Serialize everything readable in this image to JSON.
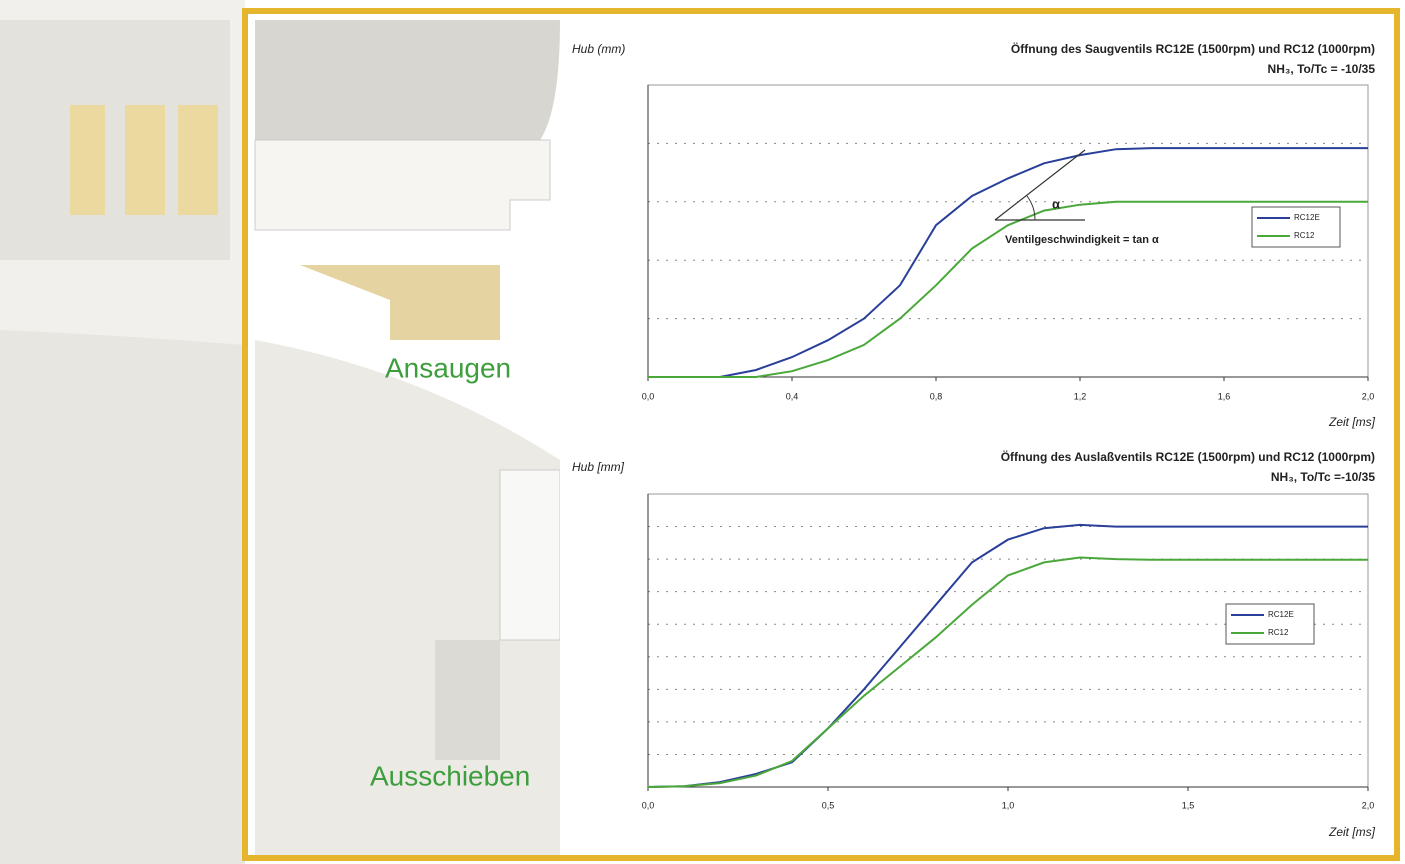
{
  "illustration": {
    "labels": [
      "Ansaugen",
      "Ausschieben"
    ]
  },
  "chart_data": [
    {
      "type": "line",
      "title": "Öffnung des Saugventils RC12E (1500rpm) und RC12 (1000rpm)",
      "subtitle": "NH₃, To/Tc = -10/35",
      "y_label": "Hub (mm)",
      "x_label": "Zeit [ms]",
      "xlim": [
        0,
        2
      ],
      "ylim": [
        0,
        5
      ],
      "xticks": [
        {
          "value": 0,
          "label": "0,0"
        },
        {
          "value": 0.4,
          "label": "0,4"
        },
        {
          "value": 0.8,
          "label": "0,8"
        },
        {
          "value": 1.2,
          "label": "1,2"
        },
        {
          "value": 1.6,
          "label": "1,6"
        },
        {
          "value": 2,
          "label": "2,0"
        }
      ],
      "ygrid": [
        1,
        2,
        3,
        4
      ],
      "x": [
        0,
        0.1,
        0.2,
        0.3,
        0.4,
        0.5,
        0.6,
        0.7,
        0.8,
        0.9,
        1.0,
        1.1,
        1.2,
        1.3,
        1.4,
        1.5,
        1.6,
        1.7,
        1.8,
        1.9,
        2.0
      ],
      "series": [
        {
          "name": "RC12E",
          "color": "#2a3f9a",
          "values": [
            0,
            0,
            0,
            0.12,
            0.34,
            0.63,
            1.0,
            1.57,
            2.6,
            3.1,
            3.4,
            3.66,
            3.8,
            3.9,
            3.92,
            3.92,
            3.92,
            3.92,
            3.92,
            3.92,
            3.92
          ]
        },
        {
          "name": "RC12",
          "color": "#4aa83a",
          "values": [
            0,
            0,
            0,
            0,
            0.1,
            0.29,
            0.55,
            1.0,
            1.57,
            2.2,
            2.6,
            2.85,
            2.95,
            3.0,
            3.0,
            3.0,
            3.0,
            3.0,
            3.0,
            3.0,
            3.0
          ]
        }
      ],
      "annotations": [
        "α",
        "Ventilgeschwindigkeit = tan α"
      ],
      "legend": "right"
    },
    {
      "type": "line",
      "title": "Öffnung des Auslaßventils RC12E (1500rpm) und RC12 (1000rpm)",
      "subtitle": "NH₃, To/Tc =-10/35",
      "y_label": "Hub [mm]",
      "x_label": "Zeit [ms]",
      "xlim": [
        0,
        2
      ],
      "ylim": [
        0,
        9
      ],
      "xticks": [
        {
          "value": 0,
          "label": "0,0"
        },
        {
          "value": 0.5,
          "label": "0,5"
        },
        {
          "value": 1,
          "label": "1,0"
        },
        {
          "value": 1.5,
          "label": "1,5"
        },
        {
          "value": 2,
          "label": "2,0"
        }
      ],
      "ygrid": [
        1,
        2,
        3,
        4,
        5,
        6,
        7,
        8
      ],
      "x": [
        0,
        0.1,
        0.2,
        0.3,
        0.4,
        0.5,
        0.6,
        0.7,
        0.8,
        0.9,
        1.0,
        1.1,
        1.2,
        1.3,
        1.4,
        1.5,
        1.6,
        1.7,
        1.8,
        1.9,
        2.0
      ],
      "series": [
        {
          "name": "RC12E",
          "color": "#2a3f9a",
          "values": [
            0,
            0.02,
            0.15,
            0.4,
            0.76,
            1.8,
            3.0,
            4.3,
            5.6,
            6.9,
            7.6,
            7.95,
            8.05,
            8.0,
            8.0,
            8.0,
            8.0,
            8.0,
            8.0,
            8.0,
            8.0
          ]
        },
        {
          "name": "RC12",
          "color": "#4aa83a",
          "values": [
            0,
            0.02,
            0.12,
            0.35,
            0.8,
            1.8,
            2.8,
            3.7,
            4.6,
            5.6,
            6.5,
            6.9,
            7.05,
            7.0,
            6.98,
            6.98,
            6.98,
            6.98,
            6.98,
            6.98,
            6.98
          ]
        }
      ],
      "legend": "right"
    }
  ]
}
